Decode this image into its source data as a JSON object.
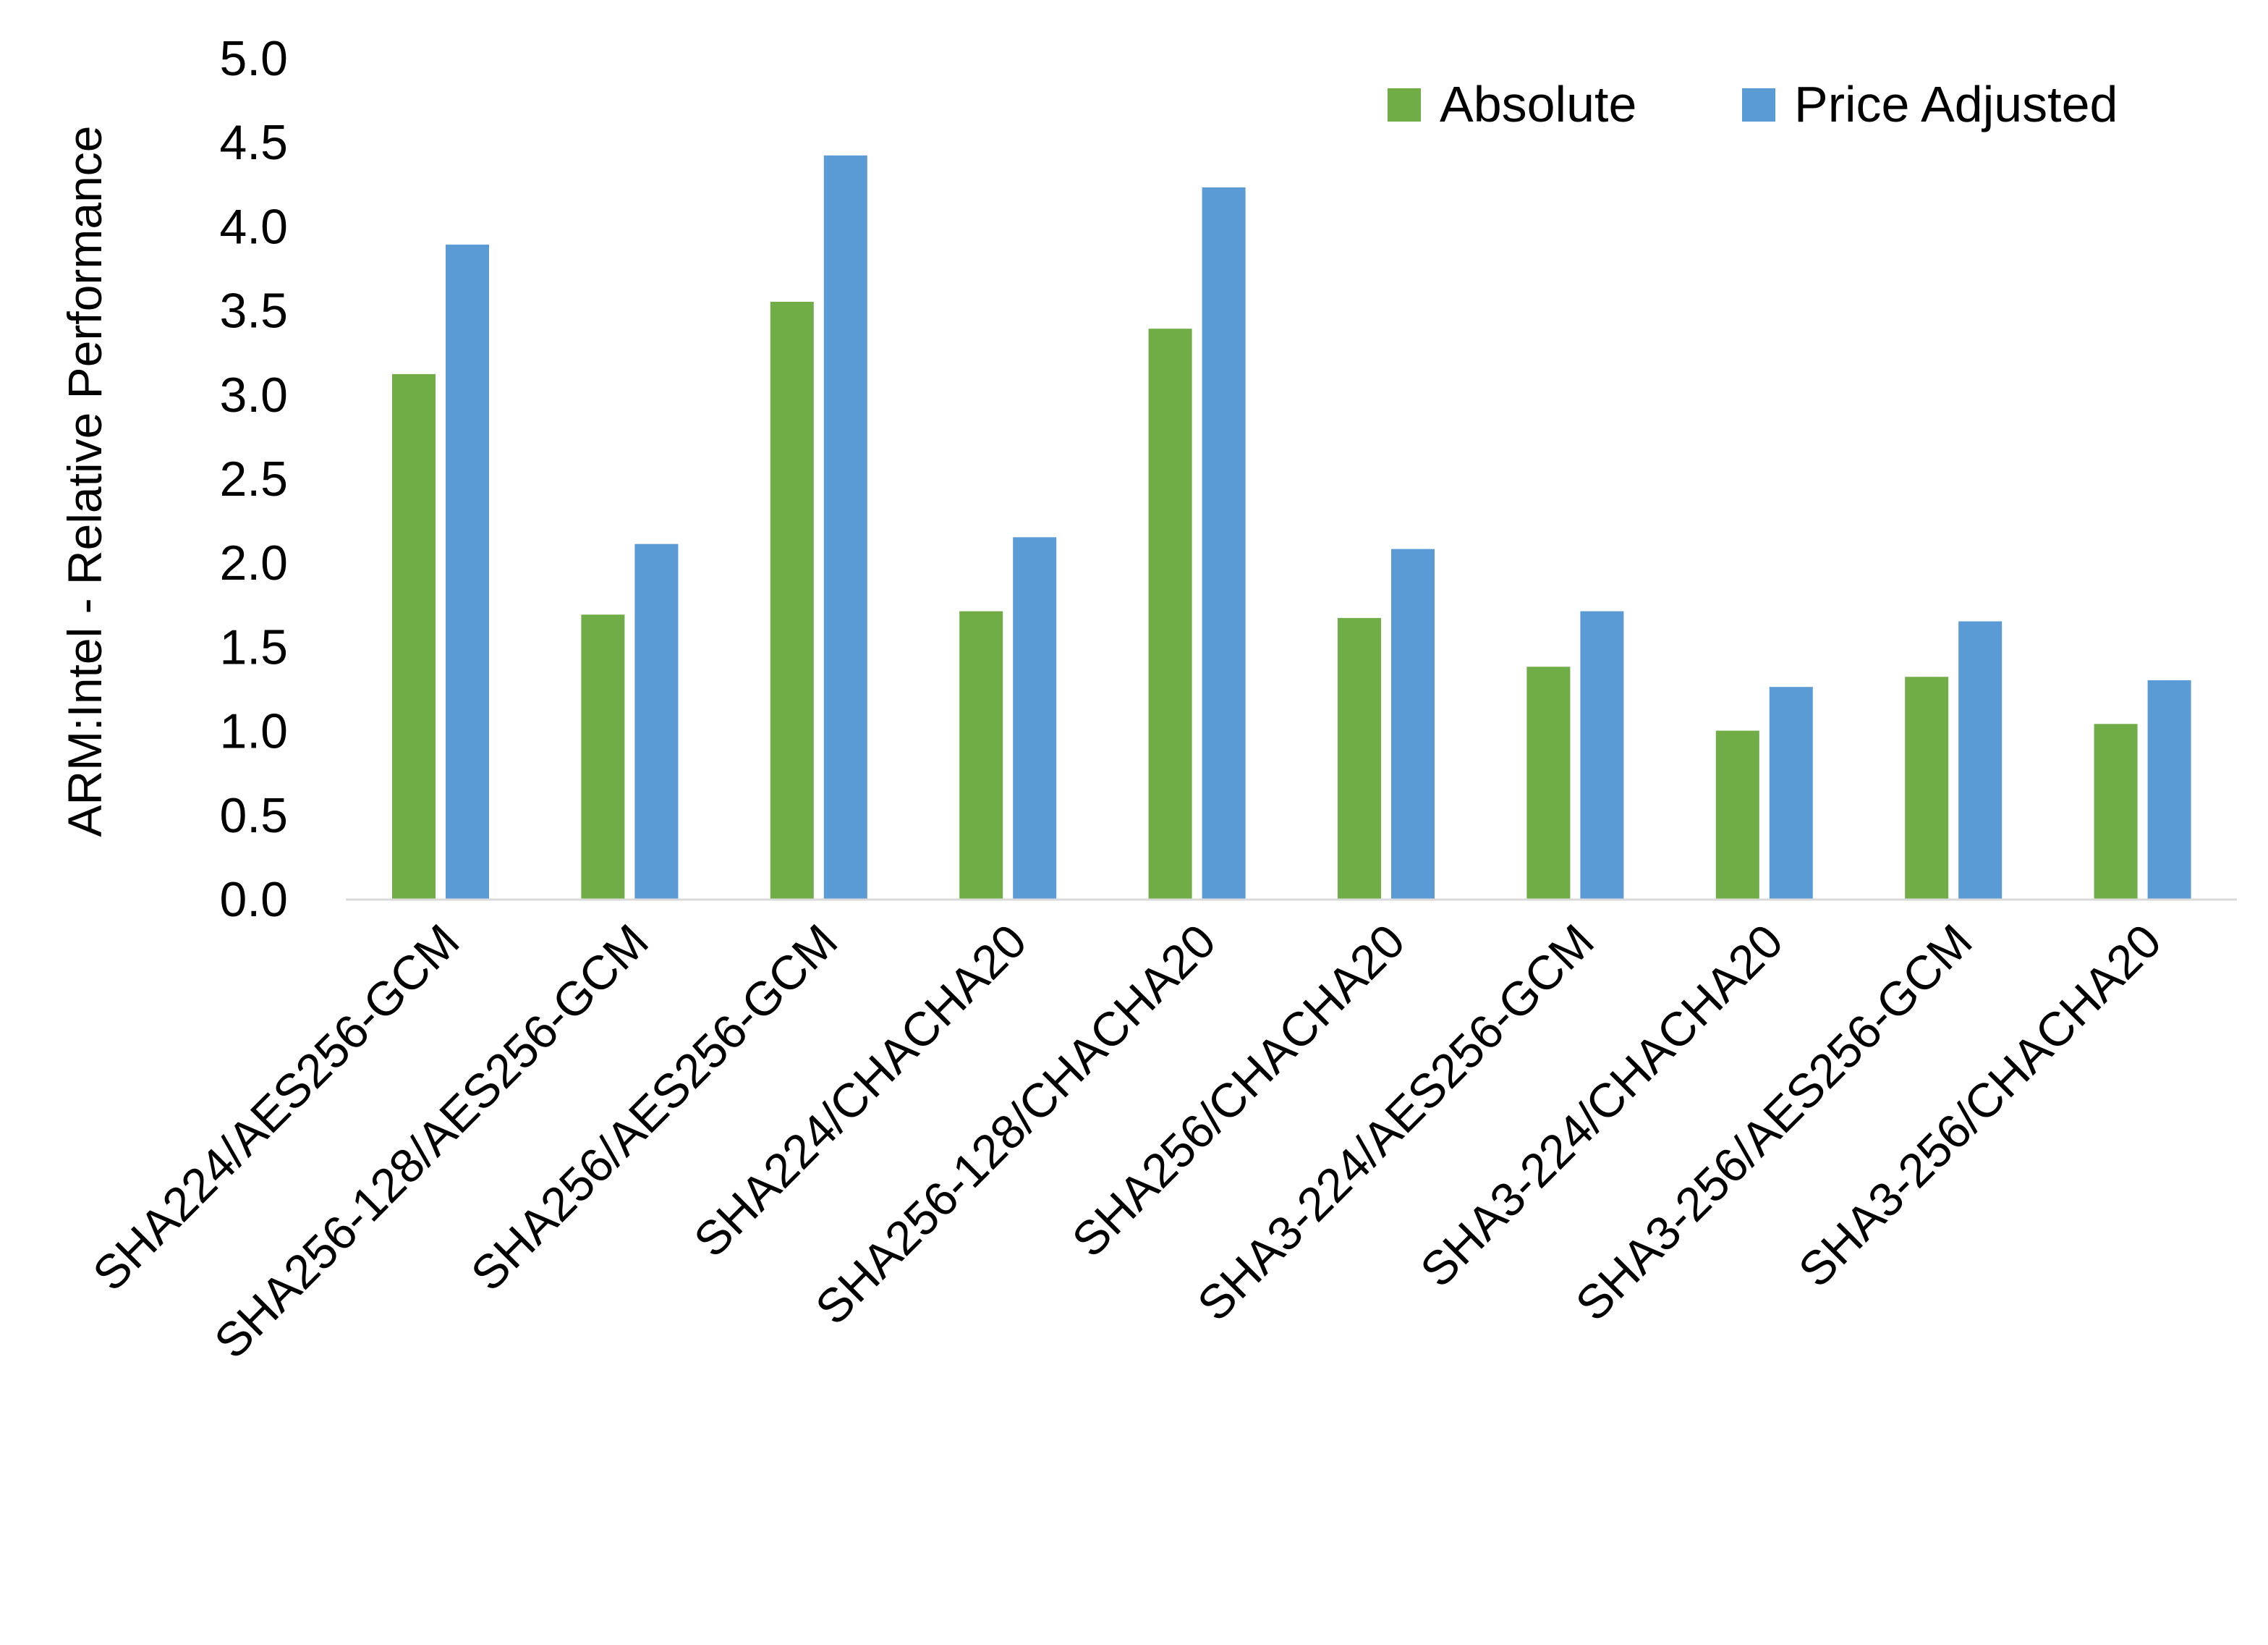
{
  "chart_data": {
    "type": "bar",
    "title": "",
    "xlabel": "",
    "ylabel": "ARM:Intel - Relative Performance",
    "ylim": [
      0,
      5.0
    ],
    "yticks": [
      "0.0",
      "0.5",
      "1.0",
      "1.5",
      "2.0",
      "2.5",
      "3.0",
      "3.5",
      "4.0",
      "4.5",
      "5.0"
    ],
    "grid": false,
    "legend_position": "top-right",
    "categories": [
      "SHA224/AES256-GCM",
      "SHA256-128/AES256-GCM",
      "SHA256/AES256-GCM",
      "SHA224/CHACHA20",
      "SHA256-128/CHACHA20",
      "SHA256/CHACHA20",
      "SHA3-224/AES256-GCM",
      "SHA3-224/CHACHA20",
      "SHA3-256/AES256-GCM",
      "SHA3-256/CHACHA20"
    ],
    "series": [
      {
        "name": "Absolute",
        "color": "#70AD47",
        "values": [
          3.12,
          1.69,
          3.55,
          1.71,
          3.39,
          1.67,
          1.38,
          1.0,
          1.32,
          1.04
        ]
      },
      {
        "name": "Price Adjusted",
        "color": "#5B9BD5",
        "values": [
          3.89,
          2.11,
          4.42,
          2.15,
          4.23,
          2.08,
          1.71,
          1.26,
          1.65,
          1.3
        ]
      }
    ]
  }
}
